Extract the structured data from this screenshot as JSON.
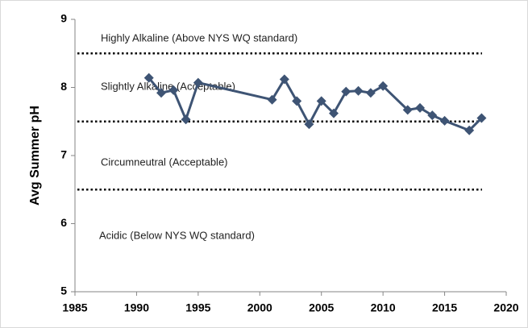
{
  "chart_data": {
    "type": "line",
    "y_label": "Avg Summer pH",
    "x": [
      1991,
      1992,
      1993,
      1994,
      1995,
      2001,
      2002,
      2003,
      2004,
      2005,
      2006,
      2007,
      2008,
      2009,
      2010,
      2012,
      2013,
      2014,
      2015,
      2017,
      2018
    ],
    "series": [
      {
        "color": "#3e5474",
        "values": [
          8.14,
          7.92,
          7.96,
          7.53,
          8.07,
          7.82,
          8.12,
          7.8,
          7.46,
          7.8,
          7.62,
          7.94,
          7.95,
          7.92,
          8.02,
          7.67,
          7.7,
          7.59,
          7.51,
          7.37,
          7.55
        ]
      }
    ],
    "xlim": [
      1985,
      2020
    ],
    "xticks": [
      1985,
      1990,
      1995,
      2000,
      2005,
      2010,
      2015,
      2020
    ],
    "ylim": [
      5,
      9
    ],
    "yticks": [
      5,
      6,
      7,
      8,
      9
    ],
    "reference_lines": [
      8.5,
      7.5,
      6.5
    ],
    "annotations": [
      "Highly  Alkaline (Above NYS WQ standard)",
      "Slightly Alkaline (Acceptable)",
      "Circumneutral  (Acceptable)",
      "Acidic (Below NYS WQ standard)"
    ]
  }
}
